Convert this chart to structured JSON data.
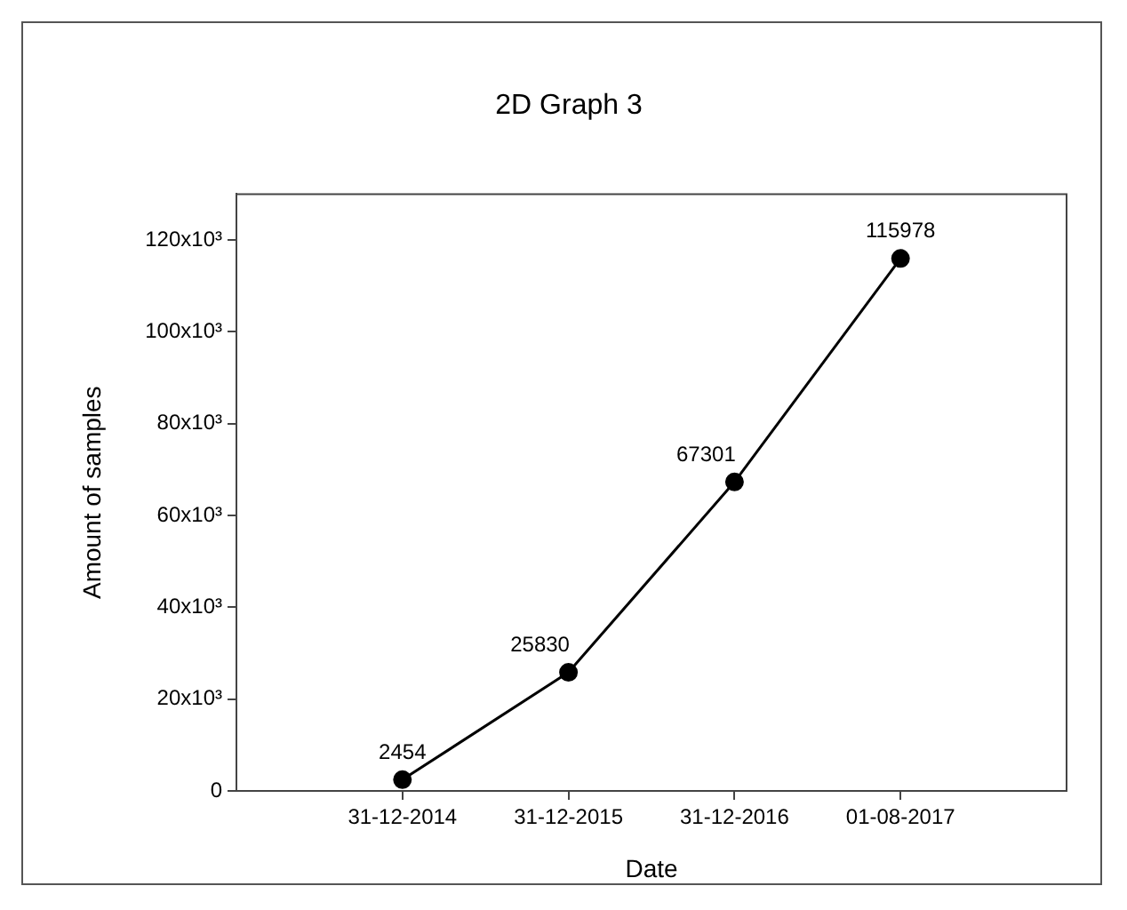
{
  "chart_data": {
    "type": "line",
    "title": "2D Graph 3",
    "xlabel": "Date",
    "ylabel": "Amount of samples",
    "categories": [
      "31-12-2014",
      "31-12-2015",
      "31-12-2016",
      "01-08-2017"
    ],
    "series": [
      {
        "color": "#000000",
        "values": [
          2454,
          25830,
          67301,
          115978
        ]
      }
    ],
    "ylim": [
      0,
      130000
    ],
    "yticks": [
      0,
      {
        "value": 20000,
        "label": "20x10³"
      },
      {
        "value": 40000,
        "label": "40x10³"
      },
      {
        "value": 60000,
        "label": "60x10³"
      },
      {
        "value": 80000,
        "label": "80x10³"
      },
      {
        "value": 100000,
        "label": "100x10³"
      },
      {
        "value": 120000,
        "label": "120x10³"
      }
    ],
    "marker": "circle",
    "line_style": "solid",
    "data_labels": true,
    "legend": false
  }
}
